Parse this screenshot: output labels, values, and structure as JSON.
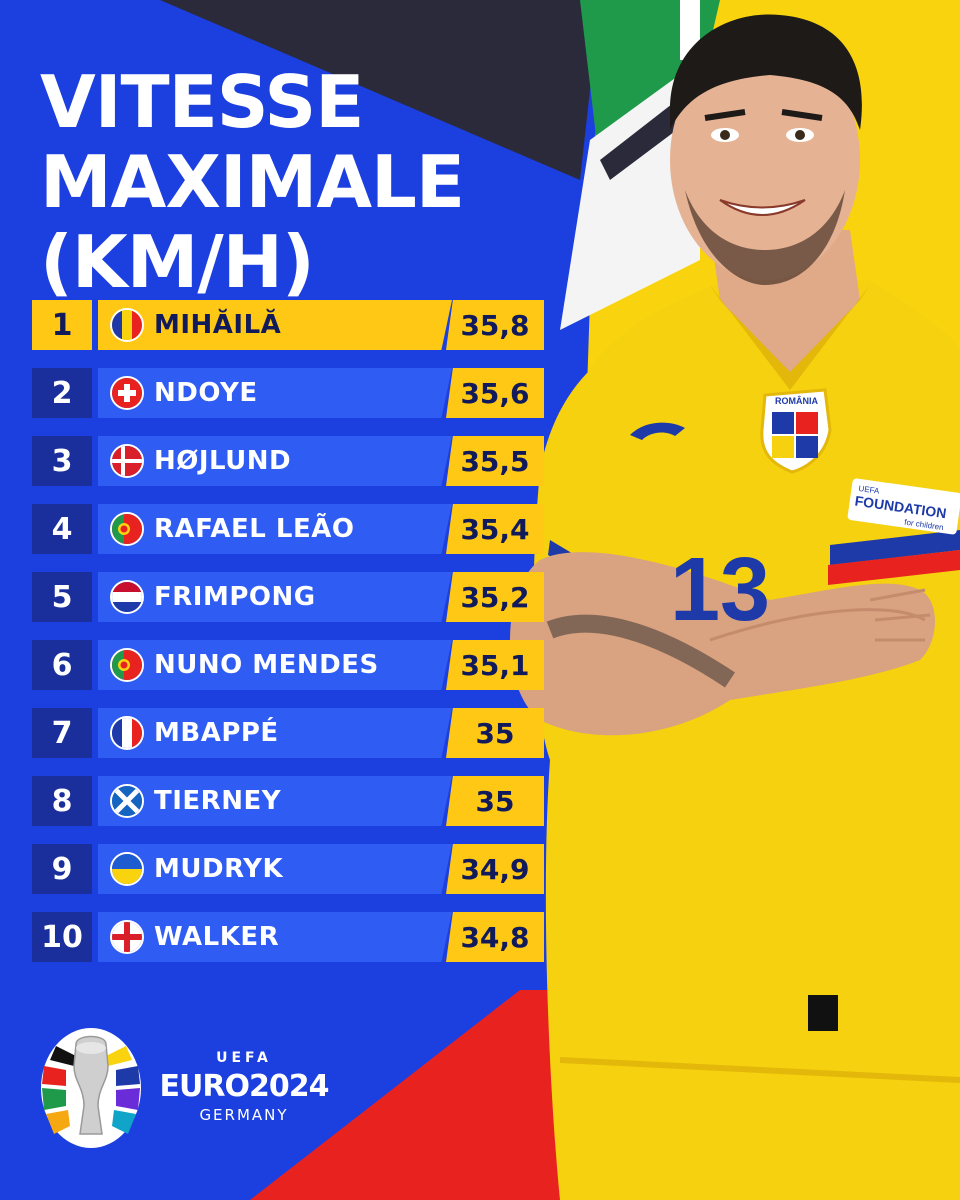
{
  "title_lines": [
    "VITESSE",
    "MAXIMALE",
    "(KM/H)"
  ],
  "colors": {
    "background_blue": "#1c3fe0",
    "row_blue": "#2f5cf2",
    "rank_navy": "#1a2f9c",
    "highlight_yellow": "#ffc814",
    "text_dark": "#111a5a",
    "jersey_yellow": "#f5d10f"
  },
  "ranking": [
    {
      "rank": "1",
      "name": "MIHĂILĂ",
      "speed": "35,8",
      "flag": "romania-flag-icon"
    },
    {
      "rank": "2",
      "name": "NDOYE",
      "speed": "35,6",
      "flag": "switzerland-flag-icon"
    },
    {
      "rank": "3",
      "name": "HØJLUND",
      "speed": "35,5",
      "flag": "denmark-flag-icon"
    },
    {
      "rank": "4",
      "name": "RAFAEL LEÃO",
      "speed": "35,4",
      "flag": "portugal-flag-icon"
    },
    {
      "rank": "5",
      "name": "FRIMPONG",
      "speed": "35,2",
      "flag": "netherlands-flag-icon"
    },
    {
      "rank": "6",
      "name": "NUNO MENDES",
      "speed": "35,1",
      "flag": "portugal-flag-icon"
    },
    {
      "rank": "7",
      "name": "MBAPPÉ",
      "speed": "35",
      "flag": "france-flag-icon"
    },
    {
      "rank": "8",
      "name": "TIERNEY",
      "speed": "35",
      "flag": "scotland-flag-icon"
    },
    {
      "rank": "9",
      "name": "MUDRYK",
      "speed": "34,9",
      "flag": "ukraine-flag-icon"
    },
    {
      "rank": "10",
      "name": "WALKER",
      "speed": "34,8",
      "flag": "england-flag-icon"
    }
  ],
  "branding": {
    "uefa": "UEFA",
    "euro": "EURO2024",
    "country": "GERMANY"
  },
  "player": {
    "jersey_number": "13",
    "badge_text": "ROMÂNIA",
    "sleeve_patch": "FOUNDATION",
    "sleeve_patch_top": "UEFA",
    "sleeve_patch_sub": "for children"
  }
}
